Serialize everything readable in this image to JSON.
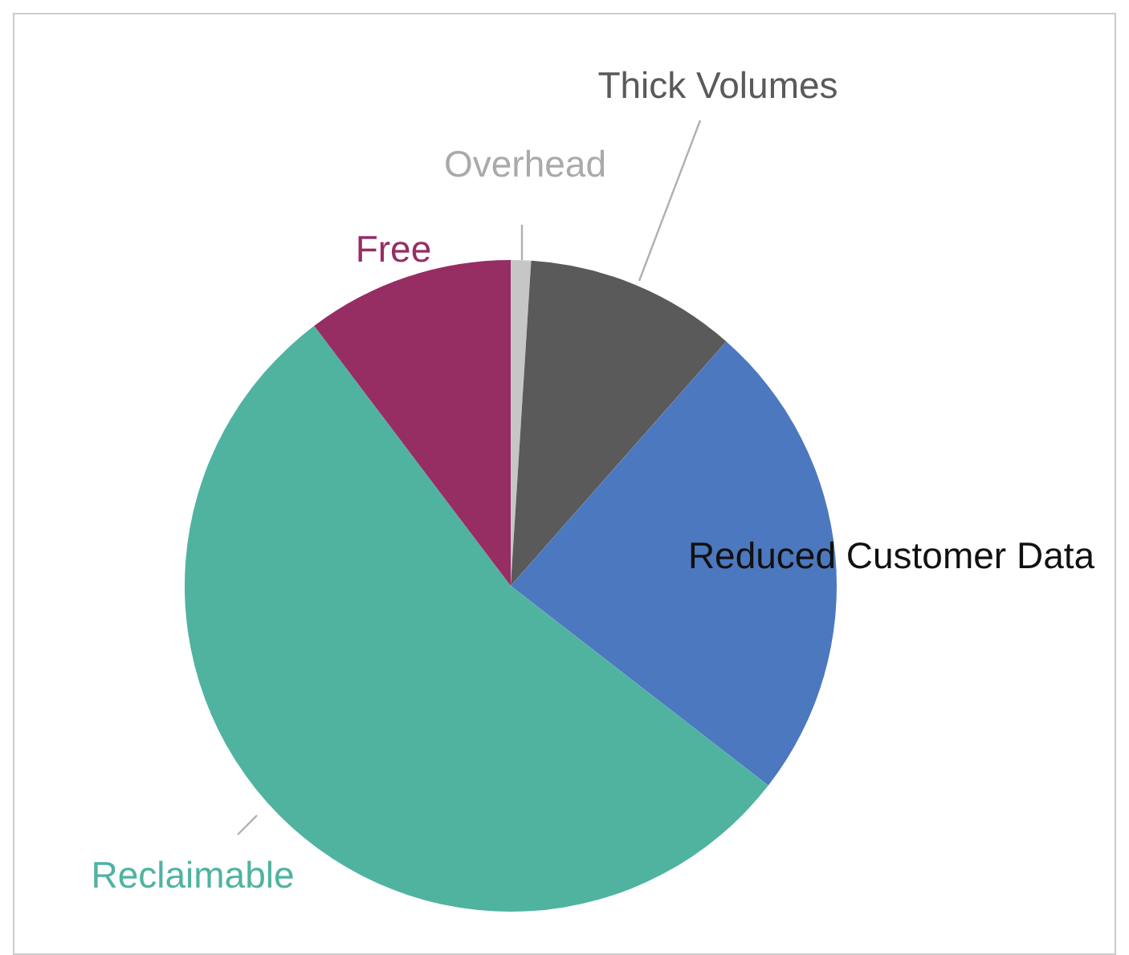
{
  "chart_data": {
    "type": "pie",
    "categories": [
      "Overhead",
      "Thick Volumes",
      "Reduced Customer Data",
      "Reclaimable",
      "Free"
    ],
    "values": [
      1,
      10.5,
      24,
      54.2,
      10.3
    ],
    "colors": [
      "#c6c6c6",
      "#5a5a5a",
      "#4c78bf",
      "#4fb3a0",
      "#962d63"
    ]
  }
}
